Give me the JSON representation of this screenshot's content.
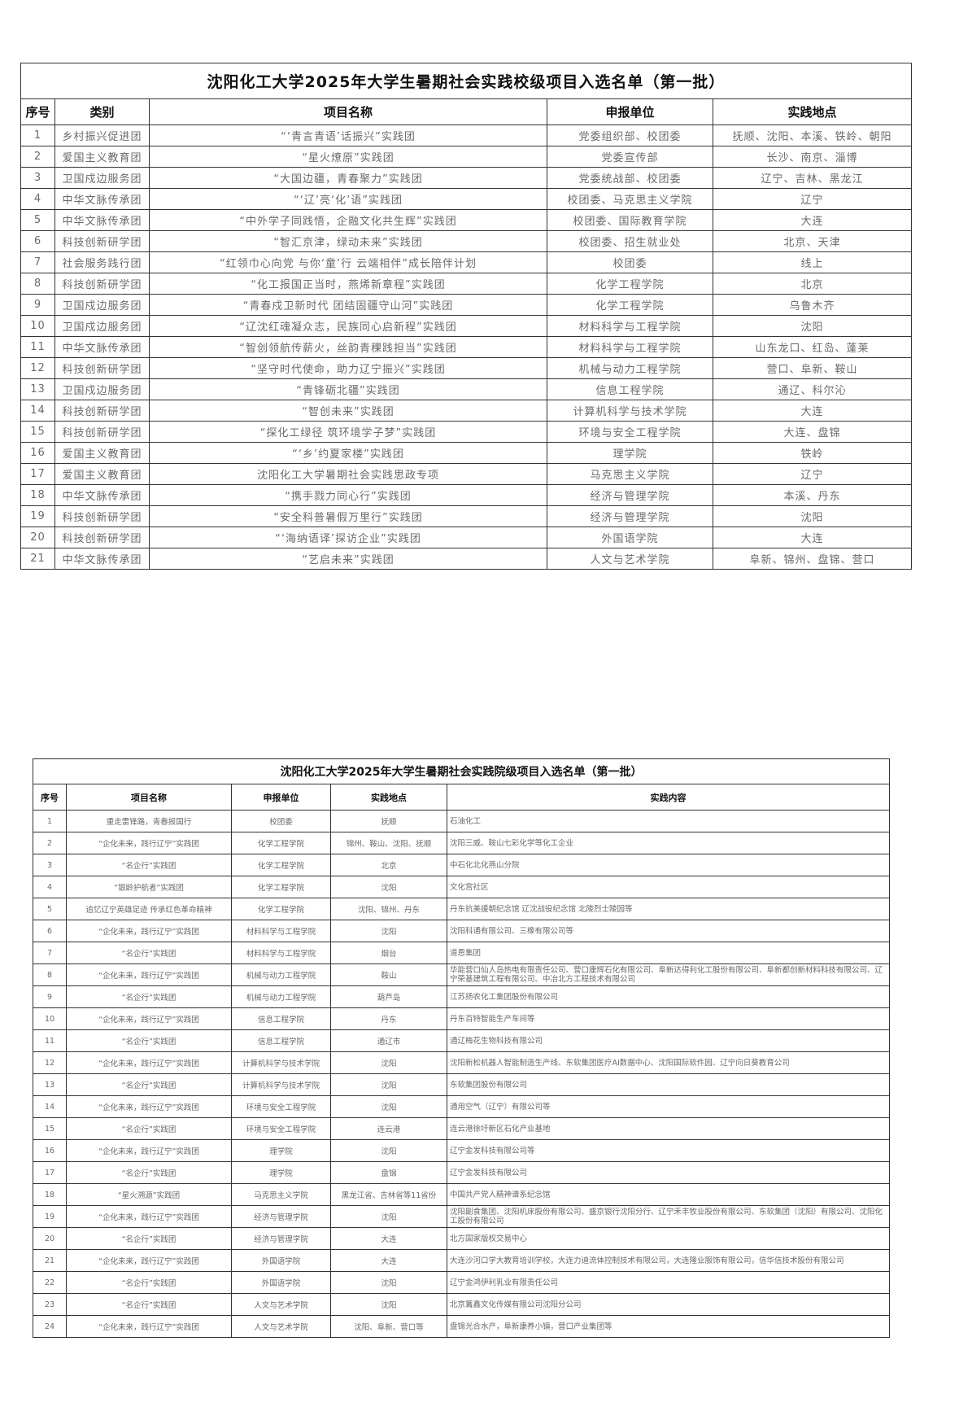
{
  "table1": {
    "title": "沈阳化工大学2025年大学生暑期社会实践校级项目入选名单（第一批）",
    "headers": [
      "序号",
      "类别",
      "项目名称",
      "申报单位",
      "实践地点"
    ],
    "rows": [
      [
        "1",
        "乡村振兴促进团",
        "“‘青言青语’话振兴”实践团",
        "党委组织部、校团委",
        "抚顺、沈阳、本溪、铁岭、朝阳"
      ],
      [
        "2",
        "爱国主义教育团",
        "“星火燎原”实践团",
        "党委宣传部",
        "长沙、南京、淄博"
      ],
      [
        "3",
        "卫国戍边服务团",
        "“大国边疆，青春聚力”实践团",
        "党委统战部、校团委",
        "辽宁、吉林、黑龙江"
      ],
      [
        "4",
        "中华文脉传承团",
        "“‘辽’亮‘化’语”实践团",
        "校团委、马克思主义学院",
        "辽宁"
      ],
      [
        "5",
        "中华文脉传承团",
        "“中外学子同践悟，企融文化共生辉”实践团",
        "校团委、国际教育学院",
        "大连"
      ],
      [
        "6",
        "科技创新研学团",
        "“智汇京津，绿动未来”实践团",
        "校团委、招生就业处",
        "北京、天津"
      ],
      [
        "7",
        "社会服务践行团",
        "“红领巾心向党 与你‘童’行 云端相伴”成长陪伴计划",
        "校团委",
        "线上"
      ],
      [
        "8",
        "科技创新研学团",
        "“化工报国正当时，燕烯新章程”实践团",
        "化学工程学院",
        "北京"
      ],
      [
        "9",
        "卫国戍边服务团",
        "“青春戍卫新时代 团结固疆守山河”实践团",
        "化学工程学院",
        "乌鲁木齐"
      ],
      [
        "10",
        "卫国戍边服务团",
        "“辽沈红魂凝众志，民族同心启新程”实践团",
        "材料科学与工程学院",
        "沈阳"
      ],
      [
        "11",
        "中华文脉传承团",
        "“智创领航传薪火，丝韵青稞践担当”实践团",
        "材料科学与工程学院",
        "山东龙口、红岛、蓬莱"
      ],
      [
        "12",
        "科技创新研学团",
        "“坚守时代使命，助力辽宁振兴”实践团",
        "机械与动力工程学院",
        "营口、阜新、鞍山"
      ],
      [
        "13",
        "卫国戍边服务团",
        "“青锋砺北疆”实践团",
        "信息工程学院",
        "通辽、科尔沁"
      ],
      [
        "14",
        "科技创新研学团",
        "“智创未来”实践团",
        "计算机科学与技术学院",
        "大连"
      ],
      [
        "15",
        "科技创新研学团",
        "“探化工绿径 筑环境学子梦”实践团",
        "环境与安全工程学院",
        "大连、盘锦"
      ],
      [
        "16",
        "爱国主义教育团",
        "“‘乡’约夏家楼”实践团",
        "理学院",
        "铁岭"
      ],
      [
        "17",
        "爱国主义教育团",
        "沈阳化工大学暑期社会实践思政专项",
        "马克思主义学院",
        "辽宁"
      ],
      [
        "18",
        "中华文脉传承团",
        "“携手戮力同心行”实践团",
        "经济与管理学院",
        "本溪、丹东"
      ],
      [
        "19",
        "科技创新研学团",
        "“安全科普暑假万里行”实践团",
        "经济与管理学院",
        "沈阳"
      ],
      [
        "20",
        "科技创新研学团",
        "“‘海纳语译’探访企业”实践团",
        "外国语学院",
        "大连"
      ],
      [
        "21",
        "中华文脉传承团",
        "“艺启未来”实践团",
        "人文与艺术学院",
        "阜新、锦州、盘锦、营口"
      ]
    ]
  },
  "table2": {
    "title": "沈阳化工大学2025年大学生暑期社会实践院级项目入选名单（第一批）",
    "headers": [
      "序号",
      "项目名称",
      "申报单位",
      "实践地点",
      "实践内容"
    ],
    "rows": [
      [
        "1",
        "重走雷锋路，青春报国行",
        "校团委",
        "抚顺",
        "石油化工"
      ],
      [
        "2",
        "“企化未来，践行辽宁”实践团",
        "化学工程学院",
        "锦州、鞍山、沈阳、抚顺",
        "沈阳三威、鞍山七彩化学等化工企业"
      ],
      [
        "3",
        "“名企行”实践团",
        "化学工程学院",
        "北京",
        "中石化北化燕山分院"
      ],
      [
        "4",
        "“银龄护航者”实践团",
        "化学工程学院",
        "沈阳",
        "文化宫社区"
      ],
      [
        "5",
        "追忆辽宁英雄足迹 传承红色革命精神",
        "化学工程学院",
        "沈阳、锦州、丹东",
        "丹东抗美援朝纪念馆 辽沈战役纪念馆 北陵烈士陵园等"
      ],
      [
        "6",
        "“企化未来，践行辽宁”实践团",
        "材料科学与工程学院",
        "沈阳",
        "沈阳科通有限公司、三橡有限公司等"
      ],
      [
        "7",
        "“名企行”实践团",
        "材料科学与工程学院",
        "烟台",
        "道恩集团"
      ],
      [
        "8",
        "“企化未来，践行辽宁”实践团",
        "机械与动力工程学院",
        "鞍山",
        "华能营口仙人岛热电有限责任公司、营口康辉石化有限公司、阜新达得利化工股份有限公司、阜新都创新材料科技有限公司、辽宁荣基建筑工程有限公司、中冶北方工程技术有限公司"
      ],
      [
        "9",
        "“名企行”实践团",
        "机械与动力工程学院",
        "葫芦岛",
        "江苏扬农化工集团股份有限公司"
      ],
      [
        "10",
        "“企化未来，践行辽宁”实践团",
        "信息工程学院",
        "丹东",
        "丹东百特智能生产车间等"
      ],
      [
        "11",
        "“名企行”实践团",
        "信息工程学院",
        "通辽市",
        "通辽梅花生物科技有限公司"
      ],
      [
        "12",
        "“企化未来，践行辽宁”实践团",
        "计算机科学与技术学院",
        "沈阳",
        "沈阳新松机器人智能制造生产线、东软集团医疗AI数据中心、沈阳国际软件园、辽宁向日葵教育公司"
      ],
      [
        "13",
        "“名企行”实践团",
        "计算机科学与技术学院",
        "沈阳",
        "东软集团股份有限公司"
      ],
      [
        "14",
        "“企化未来，践行辽宁”实践团",
        "环境与安全工程学院",
        "沈阳",
        "通用空气（辽宁）有限公司等"
      ],
      [
        "15",
        "“名企行”实践团",
        "环境与安全工程学院",
        "连云港",
        "连云港徐圩新区石化产业基地"
      ],
      [
        "16",
        "“企化未来，践行辽宁”实践团",
        "理学院",
        "沈阳",
        "辽宁金发科技有限公司等"
      ],
      [
        "17",
        "“名企行”实践团",
        "理学院",
        "盘锦",
        "辽宁金发科技有限公司"
      ],
      [
        "18",
        "“星火溯源”实践团",
        "马克思主义学院",
        "黑龙江省、吉林省等11省份",
        "中国共产党人精神谱系纪念馆"
      ],
      [
        "19",
        "“企化未来，践行辽宁”实践团",
        "经济与管理学院",
        "沈阳",
        "沈阳副食集团、沈阳机床股份有限公司、盛京银行沈阳分行、辽宁禾丰牧业股份有限公司、东软集团（沈阳）有限公司、沈阳化工股份有限公司"
      ],
      [
        "20",
        "“名企行”实践团",
        "经济与管理学院",
        "大连",
        "北方国家版权交易中心"
      ],
      [
        "21",
        "“企化未来，践行辽宁”实践团",
        "外国语学院",
        "大连",
        "大连沙河口学大教育培训学校，大连力迪流体控制技术有限公司，大连隆业服饰有限公司，信华信技术股份有限公司"
      ],
      [
        "22",
        "“名企行”实践团",
        "外国语学院",
        "沈阳",
        "辽宁金鸿伊利乳业有限责任公司"
      ],
      [
        "23",
        "“名企行”实践团",
        "人文与艺术学院",
        "沈阳",
        "北京篝鑫文化传媒有限公司沈阳分公司"
      ],
      [
        "24",
        "“企化未来，践行辽宁”实践团",
        "人文与艺术学院",
        "沈阳、阜新、营口等",
        "盘锦光合水产，阜新康养小镇，营口产业集团等"
      ]
    ]
  }
}
